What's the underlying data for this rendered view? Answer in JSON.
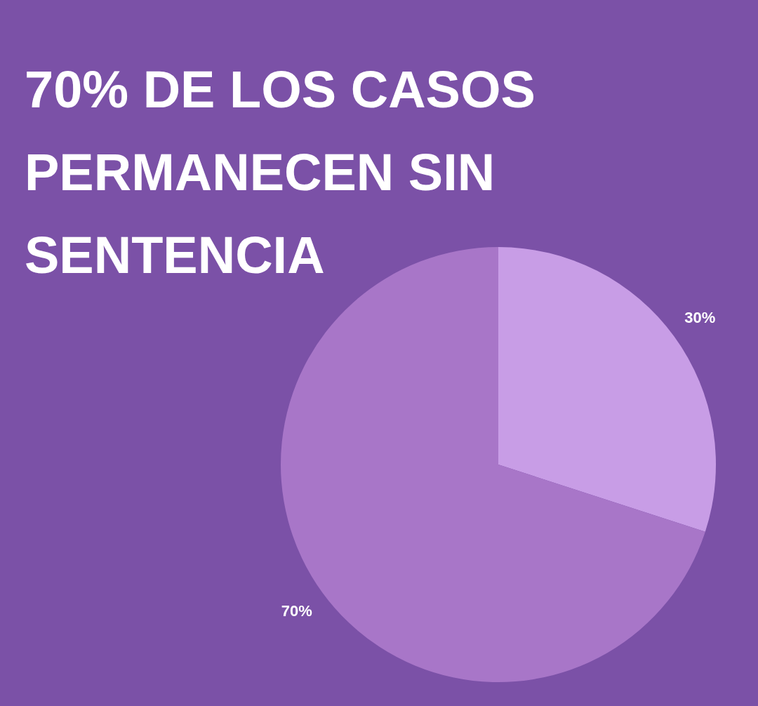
{
  "chart_data": {
    "type": "pie",
    "title": "70% DE LOS CASOS PERMANECEN SIN SENTENCIA",
    "categories": [
      null,
      null
    ],
    "values": [
      30,
      70
    ],
    "colors": [
      "#c89de6",
      "#a876c8"
    ],
    "value_labels": [
      "30%",
      "70%"
    ]
  }
}
